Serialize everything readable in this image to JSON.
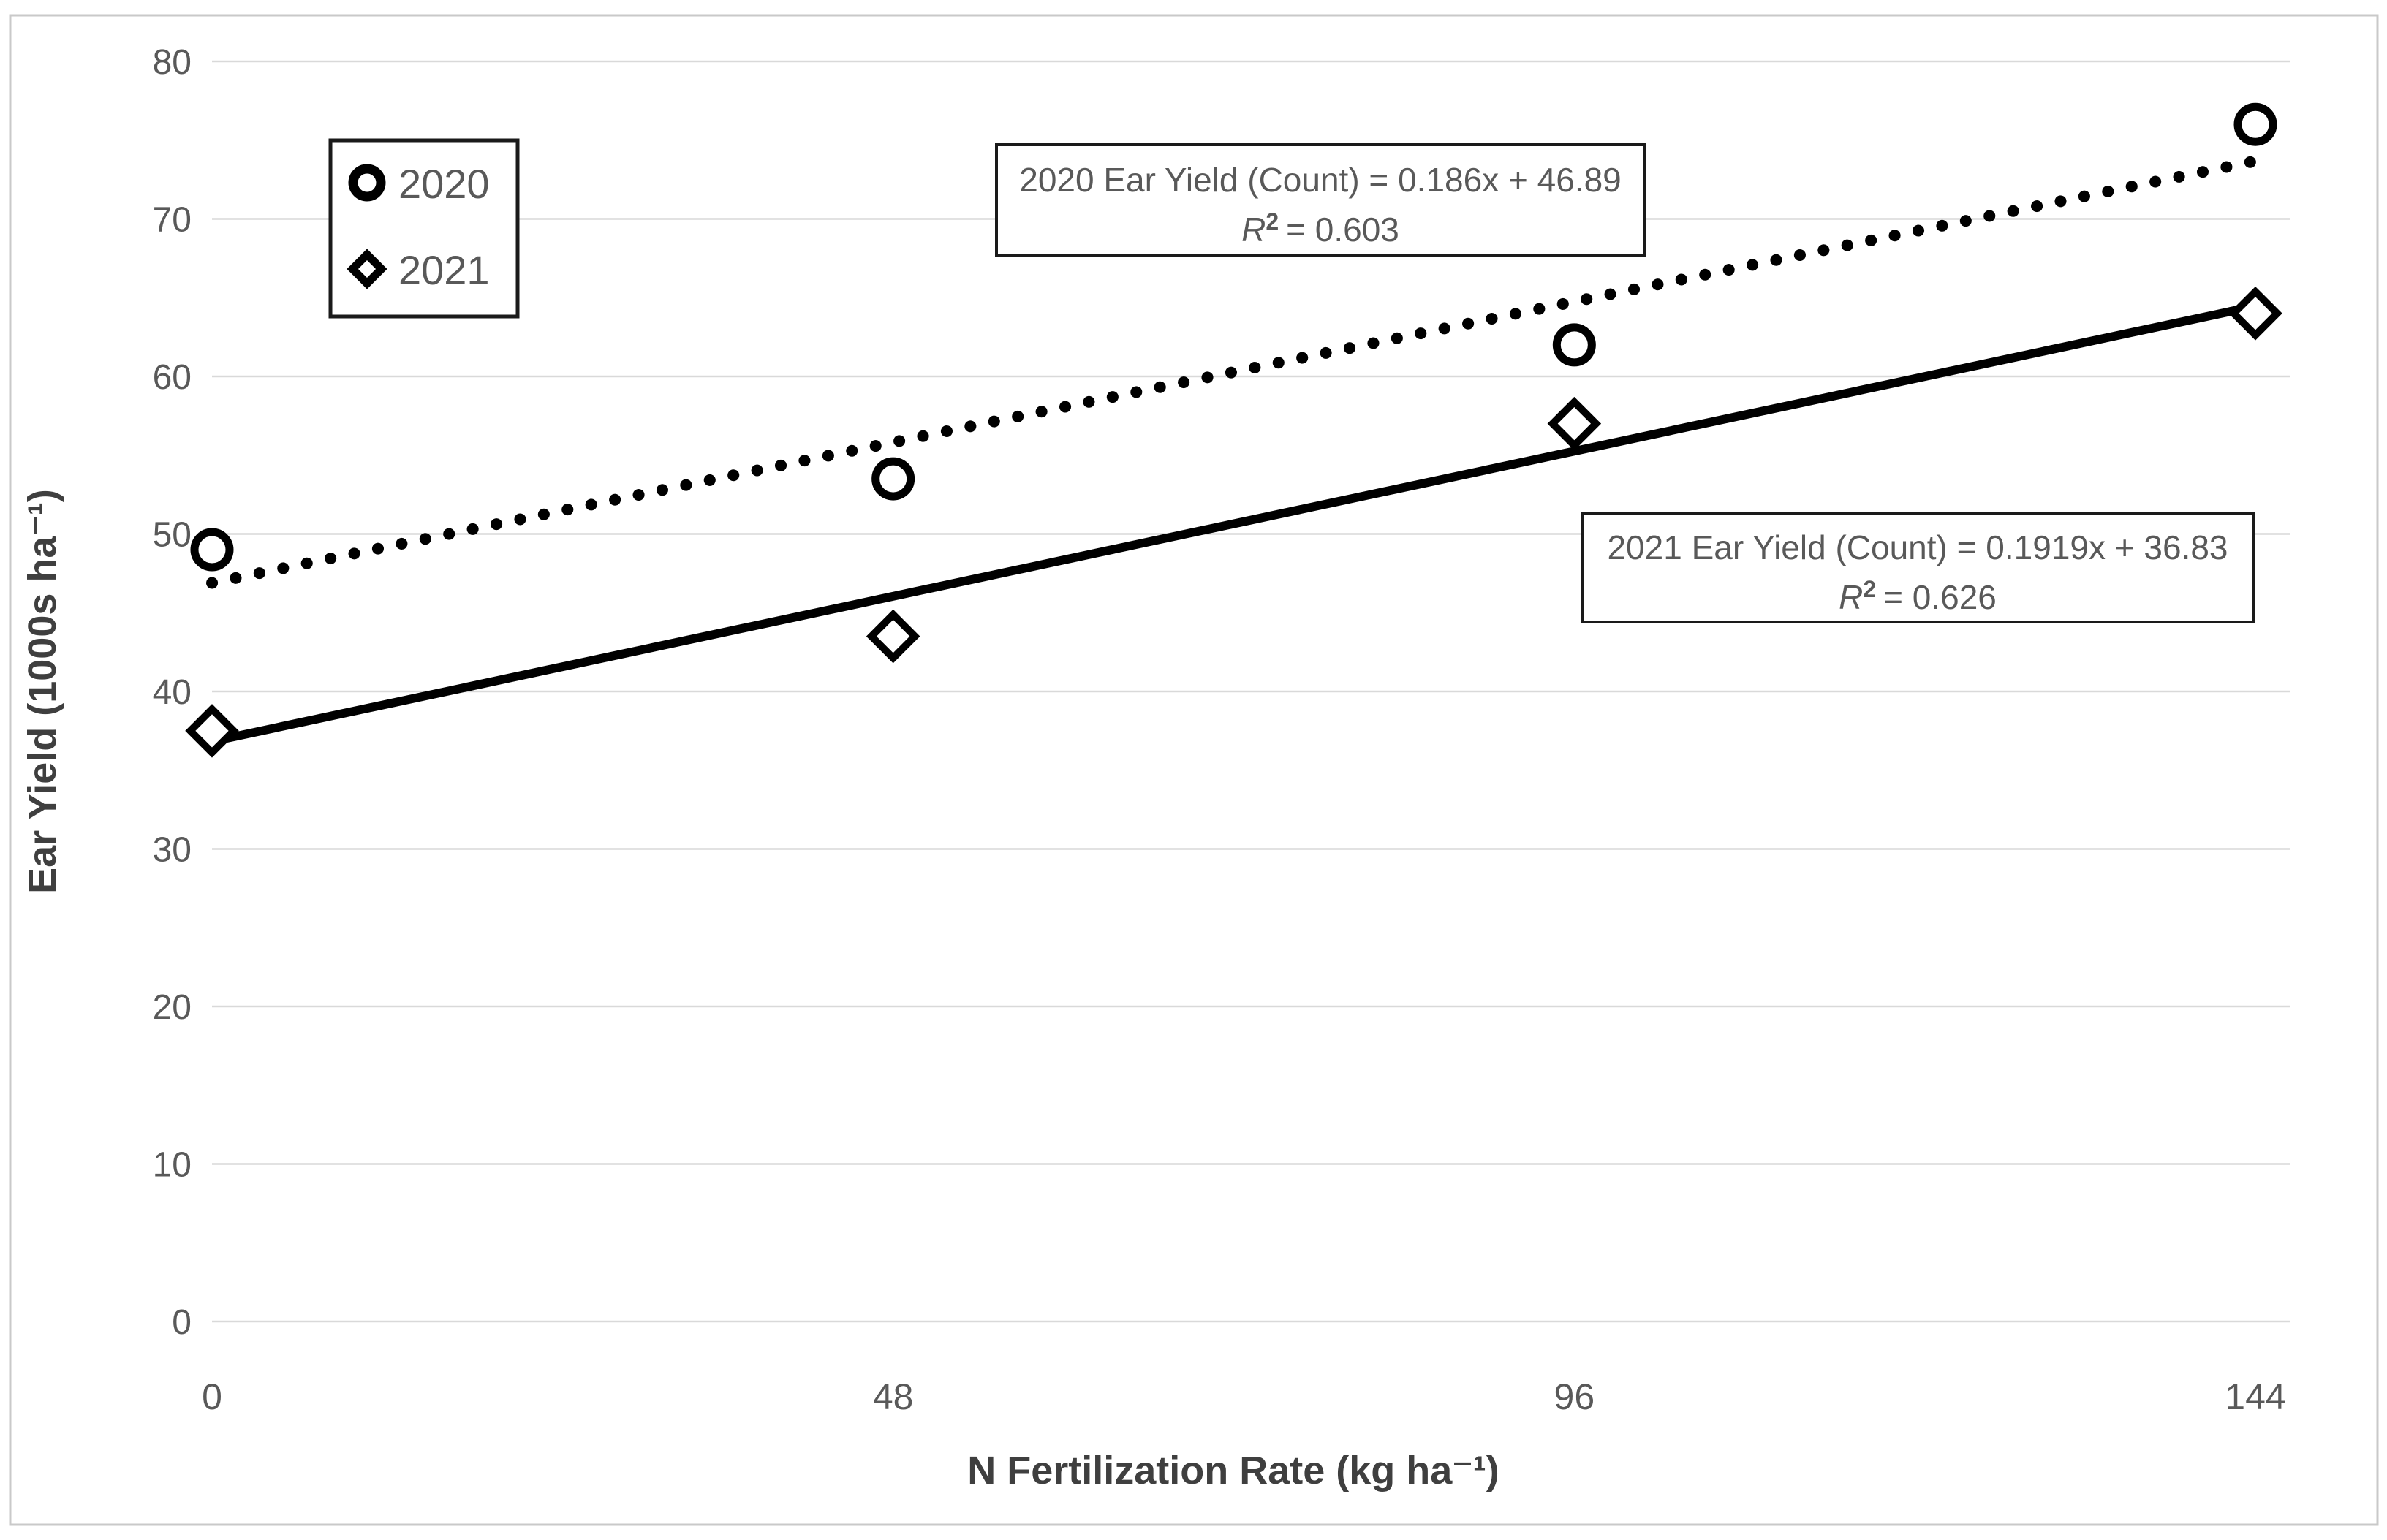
{
  "chart_data": {
    "type": "scatter",
    "title": "",
    "xlabel": "N Fertilization Rate (kg ha⁻¹)",
    "ylabel": "Ear Yield (1000s ha⁻¹)",
    "x_ticks": [
      0,
      48,
      96,
      144
    ],
    "y_ticks": [
      0,
      10,
      20,
      30,
      40,
      50,
      60,
      70,
      80
    ],
    "xlim": [
      0,
      144
    ],
    "ylim": [
      0,
      80
    ],
    "grid": "horizontal-only",
    "legend_position": "top-left-inside",
    "series": [
      {
        "name": "2020",
        "marker": "circle",
        "x": [
          0,
          48,
          96,
          144
        ],
        "values": [
          49,
          53.5,
          62,
          76
        ],
        "trendline": {
          "style": "dotted",
          "slope": 0.186,
          "intercept": 46.89,
          "r2": 0.603
        }
      },
      {
        "name": "2021",
        "marker": "diamond",
        "x": [
          0,
          48,
          96,
          144
        ],
        "values": [
          37.5,
          43.5,
          57,
          64
        ],
        "trendline": {
          "style": "solid",
          "slope": 0.1919,
          "intercept": 36.83,
          "r2": 0.626
        }
      }
    ],
    "annotations": [
      {
        "text": "2020 Ear Yield (Count) = 0.186x + 46.89",
        "r2_text": "R² = 0.603"
      },
      {
        "text": "2021 Ear Yield (Count) = 0.1919x + 36.83",
        "r2_text": "R² = 0.626"
      }
    ]
  },
  "legend": {
    "items": [
      {
        "label": "2020",
        "marker": "circle"
      },
      {
        "label": "2021",
        "marker": "diamond"
      }
    ]
  },
  "equation_boxes": [
    {
      "line1": "2020 Ear Yield (Count) = 0.186x + 46.89",
      "r2_prefix": "R",
      "r2_sup": "2",
      "r2_rest": "= 0.603"
    },
    {
      "line1": "2021 Ear Yield (Count) = 0.1919x + 36.83",
      "r2_prefix": "R",
      "r2_sup": "2",
      "r2_rest": "= 0.626"
    }
  ],
  "colors": {
    "marker": "#000000",
    "trendline": "#000000",
    "grid": "#d9d9d9",
    "tick_text": "#595959",
    "title_text": "#3f3f3f",
    "figure_border": "#c9c9c9",
    "background": "#ffffff",
    "annotation_border": "#1a1a1a"
  }
}
